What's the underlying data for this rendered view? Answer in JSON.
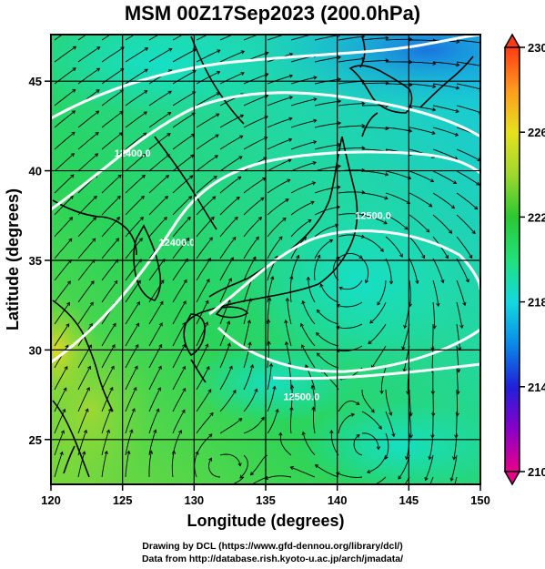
{
  "title": "MSM 00Z17Sep2023 (200.0hPa)",
  "map": {
    "lon_range": [
      120,
      150
    ],
    "lat_range": [
      22.5,
      47.6
    ],
    "lon_ticks": [
      120,
      125,
      130,
      135,
      140,
      145,
      150
    ],
    "lat_ticks": [
      25,
      30,
      35,
      40,
      45
    ],
    "xlabel": "Longitude (degrees)",
    "ylabel": "Latitude  (degrees)",
    "contour_labels": [
      {
        "text": "12500.0",
        "lon": 142.5,
        "lat": 37.3
      },
      {
        "text": "12500.0",
        "lon": 137.5,
        "lat": 27.2
      },
      {
        "text": "12400.0",
        "lon": 125.7,
        "lat": 40.8
      },
      {
        "text": "12400.0",
        "lon": 128.8,
        "lat": 35.8
      }
    ],
    "anticyclone_centers": [
      {
        "lon": 140.8,
        "lat": 34.6
      },
      {
        "lon": 142.2,
        "lat": 24.4
      },
      {
        "lon": 131.5,
        "lat": 23.4
      }
    ]
  },
  "colorbar": {
    "min": 210,
    "max": 230,
    "tick_labels": [
      "230",
      "226",
      "222",
      "218",
      "214",
      "210"
    ],
    "tick_values": [
      230,
      226,
      222,
      218,
      214,
      210
    ],
    "colors": [
      "#e8008a",
      "#8a00c8",
      "#2020d8",
      "#0a8ae8",
      "#14d8e0",
      "#22e07a",
      "#2ac832",
      "#9ed82e",
      "#e6e020",
      "#ff9a1e",
      "#ff3a14"
    ]
  },
  "credits": {
    "line1": "Drawing by DCL (https://www.gfd-dennou.org/library/dcl/)",
    "line2": "Data from http://database.rish.kyoto-u.ac.jp/arch/jmadata/"
  }
}
